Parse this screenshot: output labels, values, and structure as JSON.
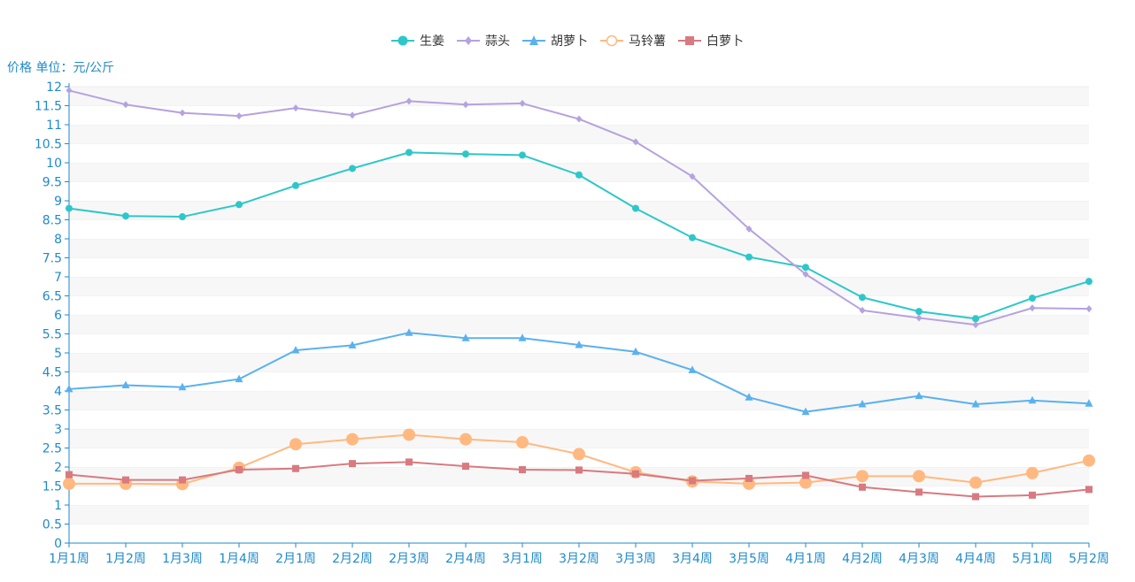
{
  "chart_data": {
    "type": "line",
    "ylabel": "价格 单位：元/公斤",
    "ylim": [
      0,
      12
    ],
    "ytick_step": 0.5,
    "grid": "horizontal alternating bands",
    "legend_position": "top-center",
    "categories": [
      "1月1周",
      "1月2周",
      "1月3周",
      "1月4周",
      "2月1周",
      "2月2周",
      "2月3周",
      "2月4周",
      "3月1周",
      "3月2周",
      "3月3周",
      "3月4周",
      "3月5周",
      "4月1周",
      "4月2周",
      "4月3周",
      "4月4周",
      "5月1周",
      "5月2周"
    ],
    "yticks": [
      "0",
      "0.5",
      "1",
      "1.5",
      "2",
      "2.5",
      "3",
      "3.5",
      "4",
      "4.5",
      "5",
      "5.5",
      "6",
      "6.5",
      "7",
      "7.5",
      "8",
      "8.5",
      "9",
      "9.5",
      "10",
      "10.5",
      "11",
      "11.5",
      "12"
    ],
    "series": [
      {
        "name": "生姜",
        "color": "#2ec7c9",
        "marker": "circle",
        "values": [
          8.8,
          8.6,
          8.58,
          8.9,
          9.4,
          9.85,
          10.27,
          10.23,
          10.2,
          9.68,
          8.8,
          8.03,
          7.52,
          7.25,
          6.46,
          6.09,
          5.9,
          6.44,
          6.88
        ]
      },
      {
        "name": "蒜头",
        "color": "#b6a2de",
        "marker": "diamond",
        "values": [
          11.9,
          11.53,
          11.31,
          11.23,
          11.44,
          11.25,
          11.62,
          11.53,
          11.56,
          11.15,
          10.55,
          9.64,
          8.26,
          7.07,
          6.12,
          5.92,
          5.74,
          6.18,
          6.16
        ]
      },
      {
        "name": "胡萝卜",
        "color": "#5ab1ef",
        "marker": "triangle",
        "values": [
          4.05,
          4.15,
          4.1,
          4.31,
          5.07,
          5.2,
          5.53,
          5.39,
          5.39,
          5.21,
          5.03,
          4.55,
          3.83,
          3.45,
          3.65,
          3.87,
          3.65,
          3.75,
          3.67
        ]
      },
      {
        "name": "马铃薯",
        "color": "#ffb980",
        "marker": "ring",
        "values": [
          1.56,
          1.56,
          1.55,
          1.98,
          2.6,
          2.73,
          2.85,
          2.73,
          2.65,
          2.34,
          1.86,
          1.62,
          1.56,
          1.59,
          1.76,
          1.76,
          1.59,
          1.84,
          2.17
        ]
      },
      {
        "name": "白萝卜",
        "color": "#d87a80",
        "marker": "square",
        "values": [
          1.8,
          1.66,
          1.66,
          1.93,
          1.96,
          2.09,
          2.13,
          2.02,
          1.93,
          1.92,
          1.82,
          1.64,
          1.7,
          1.78,
          1.47,
          1.34,
          1.22,
          1.26,
          1.41
        ]
      }
    ]
  }
}
